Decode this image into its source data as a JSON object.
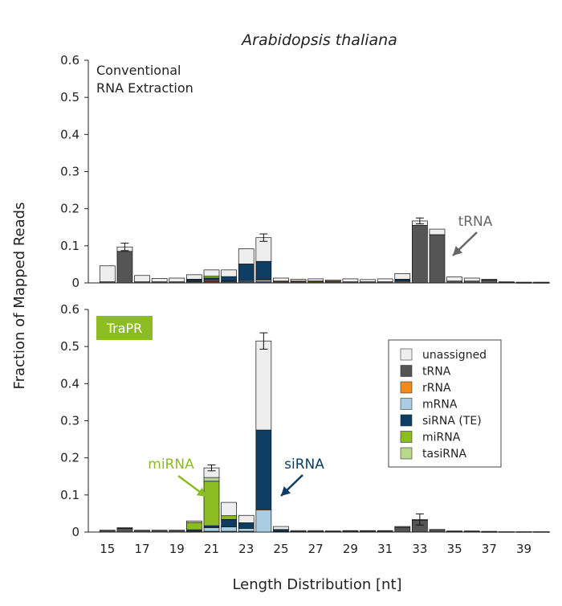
{
  "title": "Arabidopsis thaliana",
  "xlabel": "Length Distribution [nt]",
  "ylabel": "Fraction of Mapped Reads",
  "colors": {
    "unassigned": "#eeeeee",
    "tRNA": "#555555",
    "rRNA": "#f08a1d",
    "mRNA": "#a9cde3",
    "siRNA (TE)": "#0d3d63",
    "miRNA": "#8bbd22",
    "tasiRNA": "#b9d98a",
    "trapr_label_bg": "#8bbd22",
    "trna_annotation": "#666666",
    "mirna_annotation": "#8bbd22",
    "sirna_annotation": "#0d3d63"
  },
  "chart_data": [
    {
      "type": "bar",
      "stacked": true,
      "panel_label": "Conventional RNA Extraction",
      "panel_label_lines": [
        "Conventional",
        "RNA Extraction"
      ],
      "ylim": [
        0,
        0.6
      ],
      "yticks": [
        "0",
        "0.1",
        "0.2",
        "0.3",
        "0.4",
        "0.5",
        "0.6"
      ],
      "categories": [
        15,
        16,
        17,
        18,
        19,
        20,
        21,
        22,
        23,
        24,
        25,
        26,
        27,
        28,
        29,
        30,
        31,
        32,
        33,
        34,
        35,
        36,
        37,
        38,
        39,
        40
      ],
      "series": [
        {
          "name": "tRNA",
          "values": [
            0.003,
            0.085,
            0.003,
            0.003,
            0.003,
            0.003,
            0.003,
            0.003,
            0.003,
            0.003,
            0.003,
            0.003,
            0.003,
            0.003,
            0.003,
            0.003,
            0.003,
            0.005,
            0.155,
            0.13,
            0.005,
            0.005,
            0.008,
            0.002,
            0.001,
            0.001
          ]
        },
        {
          "name": "rRNA",
          "values": [
            0,
            0,
            0,
            0,
            0,
            0.002,
            0.002,
            0,
            0,
            0,
            0.002,
            0.002,
            0.002,
            0.002,
            0,
            0,
            0,
            0,
            0,
            0,
            0,
            0,
            0,
            0,
            0,
            0
          ]
        },
        {
          "name": "mRNA",
          "values": [
            0,
            0,
            0,
            0,
            0,
            0,
            0.003,
            0.002,
            0.003,
            0.005,
            0,
            0,
            0,
            0,
            0,
            0,
            0,
            0,
            0,
            0,
            0,
            0,
            0,
            0,
            0,
            0
          ]
        },
        {
          "name": "siRNA (TE)",
          "values": [
            0,
            0,
            0,
            0,
            0,
            0.005,
            0.005,
            0.012,
            0.045,
            0.05,
            0,
            0,
            0,
            0,
            0,
            0,
            0,
            0.005,
            0,
            0,
            0,
            0,
            0,
            0,
            0,
            0
          ]
        },
        {
          "name": "miRNA",
          "values": [
            0,
            0,
            0,
            0,
            0,
            0,
            0.005,
            0,
            0,
            0,
            0,
            0,
            0,
            0,
            0,
            0,
            0,
            0,
            0,
            0,
            0,
            0,
            0,
            0,
            0,
            0
          ]
        },
        {
          "name": "tasiRNA",
          "values": [
            0,
            0,
            0,
            0,
            0,
            0,
            0,
            0,
            0,
            0,
            0,
            0,
            0,
            0,
            0,
            0,
            0,
            0,
            0,
            0,
            0,
            0,
            0,
            0,
            0,
            0
          ]
        },
        {
          "name": "unassigned",
          "values": [
            0.043,
            0.012,
            0.017,
            0.009,
            0.01,
            0.012,
            0.017,
            0.018,
            0.041,
            0.064,
            0.008,
            0.005,
            0.006,
            0.003,
            0.008,
            0.006,
            0.008,
            0.015,
            0.012,
            0.015,
            0.011,
            0.008,
            0.002,
            0.001,
            0.001,
            0.001
          ]
        }
      ],
      "error": [
        0,
        0.01,
        0,
        0,
        0,
        0,
        0,
        0,
        0,
        0.01,
        0,
        0,
        0,
        0,
        0,
        0,
        0,
        0,
        0.008,
        0,
        0,
        0,
        0,
        0,
        0,
        0
      ],
      "annotations": [
        {
          "text": "tRNA",
          "category": 35
        }
      ]
    },
    {
      "type": "bar",
      "stacked": true,
      "panel_label": "TraPR",
      "ylim": [
        0,
        0.6
      ],
      "yticks": [
        "0",
        "0.1",
        "0.2",
        "0.3",
        "0.4",
        "0.5",
        "0.6"
      ],
      "xticks": [
        "15",
        "17",
        "19",
        "21",
        "23",
        "25",
        "27",
        "29",
        "31",
        "33",
        "35",
        "37",
        "39"
      ],
      "categories": [
        15,
        16,
        17,
        18,
        19,
        20,
        21,
        22,
        23,
        24,
        25,
        26,
        27,
        28,
        29,
        30,
        31,
        32,
        33,
        34,
        35,
        36,
        37,
        38,
        39,
        40
      ],
      "series": [
        {
          "name": "tRNA",
          "values": [
            0.003,
            0.01,
            0.003,
            0.003,
            0.003,
            0.002,
            0.002,
            0.002,
            0.002,
            0,
            0.002,
            0.002,
            0.002,
            0.002,
            0.003,
            0.003,
            0.003,
            0.013,
            0.032,
            0.005,
            0.002,
            0.002,
            0.001,
            0.001,
            0.001,
            0.001
          ]
        },
        {
          "name": "rRNA",
          "values": [
            0,
            0,
            0,
            0,
            0,
            0,
            0,
            0,
            0,
            0,
            0,
            0,
            0,
            0,
            0,
            0,
            0,
            0,
            0,
            0,
            0,
            0,
            0,
            0,
            0,
            0
          ]
        },
        {
          "name": "mRNA",
          "values": [
            0,
            0,
            0,
            0,
            0,
            0.002,
            0.01,
            0.012,
            0.008,
            0.06,
            0,
            0,
            0,
            0,
            0,
            0,
            0,
            0,
            0,
            0,
            0,
            0,
            0,
            0,
            0,
            0
          ]
        },
        {
          "name": "siRNA (TE)",
          "values": [
            0,
            0,
            0,
            0,
            0,
            0.002,
            0.005,
            0.02,
            0.015,
            0.215,
            0.005,
            0,
            0,
            0,
            0,
            0,
            0,
            0,
            0,
            0,
            0,
            0,
            0,
            0,
            0,
            0
          ]
        },
        {
          "name": "miRNA",
          "values": [
            0,
            0,
            0,
            0,
            0,
            0.02,
            0.12,
            0.01,
            0,
            0,
            0,
            0,
            0,
            0,
            0,
            0,
            0,
            0,
            0,
            0,
            0,
            0,
            0,
            0,
            0,
            0
          ]
        },
        {
          "name": "tasiRNA",
          "values": [
            0,
            0,
            0,
            0,
            0,
            0,
            0.01,
            0,
            0,
            0,
            0,
            0,
            0,
            0,
            0,
            0,
            0,
            0,
            0,
            0,
            0,
            0,
            0,
            0,
            0,
            0
          ]
        },
        {
          "name": "unassigned",
          "values": [
            0.002,
            0.002,
            0.002,
            0.002,
            0.002,
            0.004,
            0.026,
            0.036,
            0.02,
            0.24,
            0.008,
            0.002,
            0.002,
            0.001,
            0.001,
            0.001,
            0.001,
            0.002,
            0.002,
            0.002,
            0.001,
            0.001,
            0.001,
            0,
            0,
            0
          ]
        }
      ],
      "error": [
        0,
        0,
        0,
        0,
        0,
        0,
        0.008,
        0,
        0,
        0.022,
        0,
        0,
        0,
        0,
        0,
        0,
        0,
        0,
        0.015,
        0,
        0,
        0,
        0,
        0,
        0,
        0
      ],
      "legend": {
        "placement": "right",
        "entries": [
          "unassigned",
          "tRNA",
          "rRNA",
          "mRNA",
          "siRNA (TE)",
          "miRNA",
          "tasiRNA"
        ]
      },
      "annotations": [
        {
          "text": "miRNA",
          "category": 21
        },
        {
          "text": "siRNA",
          "category": 24
        }
      ]
    }
  ]
}
